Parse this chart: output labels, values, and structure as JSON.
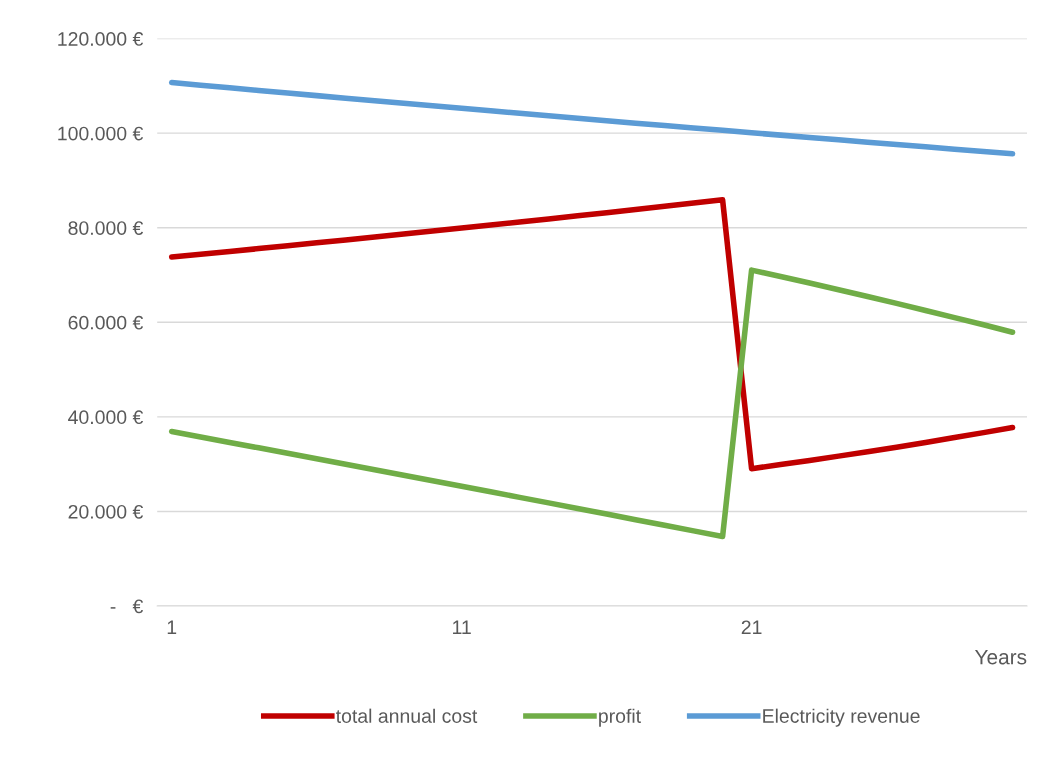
{
  "chart_data": {
    "type": "line",
    "xlabel": "Years",
    "x": [
      1,
      2,
      3,
      4,
      5,
      6,
      7,
      8,
      9,
      10,
      11,
      12,
      13,
      14,
      15,
      16,
      17,
      18,
      19,
      20,
      21,
      22,
      23,
      24,
      25,
      26,
      27,
      28,
      29,
      30
    ],
    "xlim": [
      0.5,
      30.5
    ],
    "xticks": [
      1,
      11,
      21
    ],
    "ylim": [
      0,
      120000
    ],
    "yticks": [
      {
        "value": 0,
        "label": "-   €"
      },
      {
        "value": 20000,
        "label": "20.000 €"
      },
      {
        "value": 40000,
        "label": "40.000 €"
      },
      {
        "value": 60000,
        "label": "60.000 €"
      },
      {
        "value": 80000,
        "label": "80.000 €"
      },
      {
        "value": 100000,
        "label": "100.000 €"
      },
      {
        "value": 120000,
        "label": "120.000 €"
      }
    ],
    "grid": "y",
    "legend": "bottom",
    "marker": "none",
    "line_style": "solid",
    "series": [
      {
        "name": "total annual cost",
        "color": "#c00000",
        "values": [
          73800,
          74390,
          74990,
          75590,
          76200,
          76810,
          77420,
          78050,
          78670,
          79300,
          79940,
          80580,
          81220,
          81870,
          82530,
          83190,
          83860,
          84530,
          85210,
          85900,
          29050,
          29910,
          30790,
          31700,
          32640,
          33600,
          34600,
          35620,
          36670,
          37750
        ]
      },
      {
        "name": "profit",
        "color": "#70ad47",
        "values": [
          36900,
          35750,
          34600,
          33450,
          32290,
          31130,
          29980,
          28810,
          27650,
          26490,
          25320,
          24150,
          22980,
          21810,
          20630,
          19450,
          18260,
          17080,
          15890,
          14700,
          71040,
          69680,
          68300,
          66890,
          65460,
          64000,
          62510,
          61000,
          59470,
          57900
        ]
      },
      {
        "name": "Electricity revenue",
        "color": "#5b9bd5",
        "values": [
          110700,
          110140,
          109590,
          109040,
          108490,
          107940,
          107400,
          106860,
          106320,
          105790,
          105260,
          104730,
          104200,
          103680,
          103160,
          102640,
          102120,
          101610,
          101100,
          100600,
          100090,
          99590,
          99090,
          98590,
          98100,
          97600,
          97110,
          96620,
          96140,
          95650
        ]
      }
    ]
  }
}
